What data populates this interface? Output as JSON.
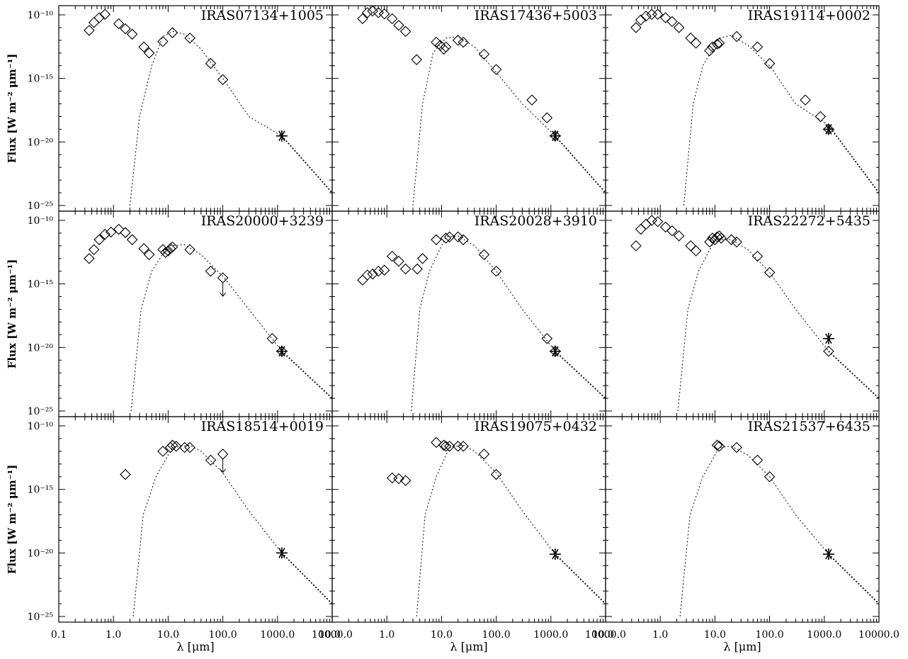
{
  "chart_data": {
    "type": "scatter",
    "figure": {
      "ylabel": "Flux [W m⁻² μm⁻¹]",
      "xlabel": "λ [μm]",
      "x_scale": "log",
      "y_scale": "log",
      "xlim": [
        0.1,
        10000
      ],
      "ylim": [
        1e-25,
        1e-10
      ],
      "x_tick_labels": [
        "0.1",
        "1.0",
        "10.0",
        "100.0",
        "1000.0",
        "10000.0"
      ],
      "y_tick_labels": [
        "10⁻¹⁰",
        "10⁻¹⁵",
        "10⁻²⁰",
        "10⁻²⁵"
      ],
      "series_note": "diamonds: photometry; asterisk: 1.2 mm flux; dotted line: model fit; arrows: upper limits"
    },
    "panels": [
      {
        "name": "IRAS07134+1005",
        "points": [
          [
            0.36,
            6e-12
          ],
          [
            0.44,
            2.5e-11
          ],
          [
            0.55,
            6e-11
          ],
          [
            0.7,
            1.1e-10
          ],
          [
            1.25,
            2e-11
          ],
          [
            1.65,
            8e-12
          ],
          [
            2.2,
            3e-12
          ],
          [
            3.6,
            3e-13
          ],
          [
            4.5,
            1e-13
          ],
          [
            8,
            8e-13
          ],
          [
            12,
            4e-12
          ],
          [
            25,
            1.5e-12
          ],
          [
            60,
            1.5e-14
          ],
          [
            100,
            8e-16
          ]
        ],
        "mm": [
          1200,
          3e-20
        ],
        "model": [
          [
            2.0,
            1e-25
          ],
          [
            3.0,
            1e-18
          ],
          [
            5,
            1e-14
          ],
          [
            8,
            2e-12
          ],
          [
            12,
            5e-12
          ],
          [
            20,
            3e-12
          ],
          [
            40,
            2e-13
          ],
          [
            100,
            1e-15
          ],
          [
            300,
            1e-18
          ],
          [
            1200,
            3e-20
          ],
          [
            10000,
            1e-24
          ]
        ],
        "upper_limits": []
      },
      {
        "name": "IRAS17436+5003",
        "points": [
          [
            0.36,
            5e-11
          ],
          [
            0.44,
            1.5e-10
          ],
          [
            0.55,
            2e-10
          ],
          [
            0.7,
            1.5e-10
          ],
          [
            0.9,
            1.2e-10
          ],
          [
            1.25,
            5e-11
          ],
          [
            1.65,
            1.5e-11
          ],
          [
            2.2,
            5e-12
          ],
          [
            3.5,
            3e-14
          ],
          [
            8,
            7e-13
          ],
          [
            9.5,
            4e-13
          ],
          [
            11,
            2e-13
          ],
          [
            12,
            3e-13
          ],
          [
            20,
            1e-12
          ],
          [
            25,
            7e-13
          ],
          [
            60,
            8e-14
          ],
          [
            100,
            5e-15
          ],
          [
            450,
            2e-17
          ],
          [
            850,
            8e-19
          ],
          [
            1200,
            3e-20
          ]
        ],
        "mm": [
          1200,
          3e-20
        ],
        "model": [
          [
            3.0,
            1e-25
          ],
          [
            4.5,
            1e-17
          ],
          [
            7,
            1e-13
          ],
          [
            12,
            1.5e-12
          ],
          [
            20,
            2e-12
          ],
          [
            40,
            3e-13
          ],
          [
            100,
            3e-15
          ],
          [
            300,
            1e-17
          ],
          [
            1200,
            3e-20
          ],
          [
            10000,
            1e-24
          ]
        ],
        "upper_limits": []
      },
      {
        "name": "IRAS19114+0002",
        "points": [
          [
            0.36,
            1e-11
          ],
          [
            0.44,
            4e-11
          ],
          [
            0.55,
            8e-11
          ],
          [
            0.7,
            1.1e-10
          ],
          [
            0.9,
            1.1e-10
          ],
          [
            1.25,
            6e-11
          ],
          [
            1.65,
            3e-11
          ],
          [
            2.2,
            1e-11
          ],
          [
            3.6,
            1.5e-12
          ],
          [
            4.5,
            6e-13
          ],
          [
            8,
            1.5e-13
          ],
          [
            9,
            3e-13
          ],
          [
            11,
            5e-13
          ],
          [
            12,
            6e-13
          ],
          [
            25,
            2e-12
          ],
          [
            60,
            3e-13
          ],
          [
            100,
            1.5e-14
          ],
          [
            450,
            2e-17
          ],
          [
            850,
            1e-18
          ],
          [
            1200,
            1e-19
          ]
        ],
        "mm": [
          1200,
          1e-19
        ],
        "model": [
          [
            2.7,
            1e-25
          ],
          [
            4,
            1e-17
          ],
          [
            6,
            1e-14
          ],
          [
            12,
            1.5e-12
          ],
          [
            20,
            2.5e-12
          ],
          [
            40,
            4e-13
          ],
          [
            100,
            1e-14
          ],
          [
            300,
            1e-17
          ],
          [
            1200,
            2e-19
          ],
          [
            10000,
            1e-24
          ]
        ],
        "upper_limits": []
      },
      {
        "name": "IRAS20000+3239",
        "points": [
          [
            0.36,
            1e-13
          ],
          [
            0.44,
            5e-13
          ],
          [
            0.55,
            3e-12
          ],
          [
            0.7,
            8e-12
          ],
          [
            0.9,
            1.2e-11
          ],
          [
            1.25,
            2e-11
          ],
          [
            1.65,
            1.1e-11
          ],
          [
            2.2,
            3e-12
          ],
          [
            3.6,
            6e-13
          ],
          [
            4.5,
            2e-13
          ],
          [
            8,
            5e-13
          ],
          [
            9,
            3e-13
          ],
          [
            10,
            4e-13
          ],
          [
            11,
            6e-13
          ],
          [
            12,
            8e-13
          ],
          [
            25,
            5e-13
          ],
          [
            60,
            1e-14
          ],
          [
            100,
            3e-15
          ],
          [
            800,
            5e-20
          ],
          [
            1200,
            5e-21
          ]
        ],
        "mm": [
          1200,
          5e-21
        ],
        "model": [
          [
            2.1,
            1e-25
          ],
          [
            3.2,
            1e-17
          ],
          [
            5,
            1e-14
          ],
          [
            10,
            1e-12
          ],
          [
            20,
            1.2e-12
          ],
          [
            40,
            2e-13
          ],
          [
            100,
            4e-15
          ],
          [
            300,
            1e-17
          ],
          [
            1200,
            5e-21
          ],
          [
            10000,
            1e-24
          ]
        ],
        "upper_limits": [
          [
            100,
            3e-15
          ]
        ]
      },
      {
        "name": "IRAS20028+3910",
        "points": [
          [
            0.36,
            2e-15
          ],
          [
            0.44,
            5e-15
          ],
          [
            0.55,
            6e-15
          ],
          [
            0.7,
            1e-14
          ],
          [
            0.9,
            1.2e-14
          ],
          [
            1.25,
            1.5e-13
          ],
          [
            1.65,
            6e-14
          ],
          [
            2.2,
            1.5e-14
          ],
          [
            3.6,
            1.5e-14
          ],
          [
            4.5,
            1e-13
          ],
          [
            8,
            3e-12
          ],
          [
            12,
            4e-12
          ],
          [
            14,
            5e-12
          ],
          [
            20,
            5e-12
          ],
          [
            25,
            3e-12
          ],
          [
            60,
            2e-13
          ],
          [
            100,
            1e-14
          ],
          [
            850,
            5e-20
          ],
          [
            1200,
            5e-21
          ]
        ],
        "mm": [
          1200,
          5e-21
        ],
        "model": [
          [
            2.8,
            1e-25
          ],
          [
            4,
            1e-17
          ],
          [
            6,
            1e-14
          ],
          [
            12,
            5e-12
          ],
          [
            20,
            6e-12
          ],
          [
            40,
            1e-12
          ],
          [
            100,
            1e-14
          ],
          [
            300,
            1e-17
          ],
          [
            1200,
            5e-21
          ],
          [
            10000,
            1e-24
          ]
        ],
        "upper_limits": []
      },
      {
        "name": "IRAS22272+5435",
        "points": [
          [
            0.36,
            1e-12
          ],
          [
            0.44,
            2e-11
          ],
          [
            0.55,
            5e-11
          ],
          [
            0.7,
            1e-10
          ],
          [
            0.9,
            8e-11
          ],
          [
            1.25,
            3e-11
          ],
          [
            1.65,
            1.5e-11
          ],
          [
            2.2,
            6e-12
          ],
          [
            3.6,
            1e-12
          ],
          [
            4.5,
            4e-13
          ],
          [
            8,
            2e-12
          ],
          [
            9,
            4e-12
          ],
          [
            10,
            3e-12
          ],
          [
            11,
            5e-12
          ],
          [
            12,
            6e-12
          ],
          [
            13,
            4e-12
          ],
          [
            20,
            3e-12
          ],
          [
            25,
            2e-12
          ],
          [
            60,
            1.5e-13
          ],
          [
            100,
            8e-15
          ],
          [
            1200,
            5e-21
          ]
        ],
        "mm": [
          1200,
          5e-20
        ],
        "model": [
          [
            2.1,
            1e-25
          ],
          [
            3.2,
            1e-17
          ],
          [
            5,
            1e-14
          ],
          [
            10,
            3e-12
          ],
          [
            20,
            3e-12
          ],
          [
            40,
            5e-13
          ],
          [
            100,
            8e-15
          ],
          [
            300,
            1e-17
          ],
          [
            1200,
            5e-21
          ],
          [
            10000,
            1e-24
          ]
        ],
        "upper_limits": []
      },
      {
        "name": "IRAS18514+0019",
        "points": [
          [
            1.65,
            1.5e-14
          ],
          [
            8,
            1e-12
          ],
          [
            11,
            2e-12
          ],
          [
            12,
            3e-12
          ],
          [
            14,
            2.5e-12
          ],
          [
            20,
            2e-12
          ],
          [
            25,
            2e-12
          ],
          [
            60,
            2e-13
          ],
          [
            100,
            6e-13
          ]
        ],
        "mm": [
          1200,
          1e-20
        ],
        "model": [
          [
            2.3,
            1e-25
          ],
          [
            3.5,
            1e-17
          ],
          [
            6,
            1e-14
          ],
          [
            12,
            2e-12
          ],
          [
            25,
            3e-12
          ],
          [
            40,
            1e-12
          ],
          [
            100,
            2e-14
          ],
          [
            300,
            2e-17
          ],
          [
            1200,
            1e-20
          ],
          [
            10000,
            1e-24
          ]
        ],
        "upper_limits": [
          [
            100,
            6e-13
          ]
        ]
      },
      {
        "name": "IRAS19075+0432",
        "points": [
          [
            1.25,
            8e-15
          ],
          [
            1.65,
            7e-15
          ],
          [
            2.2,
            5e-15
          ],
          [
            8,
            5e-12
          ],
          [
            11,
            3e-12
          ],
          [
            12,
            2.5e-12
          ],
          [
            14,
            2.5e-12
          ],
          [
            20,
            2.5e-12
          ],
          [
            25,
            2.5e-12
          ],
          [
            60,
            6e-13
          ],
          [
            100,
            1.5e-14
          ]
        ],
        "mm": [
          1200,
          8e-21
        ],
        "model": [
          [
            3.5,
            1e-25
          ],
          [
            5,
            1e-17
          ],
          [
            8,
            1e-14
          ],
          [
            14,
            2e-12
          ],
          [
            25,
            3e-12
          ],
          [
            40,
            1e-12
          ],
          [
            100,
            2e-14
          ],
          [
            300,
            2e-17
          ],
          [
            1200,
            8e-21
          ],
          [
            10000,
            1e-24
          ]
        ],
        "upper_limits": []
      },
      {
        "name": "IRAS21537+6435",
        "points": [
          [
            11,
            3e-12
          ],
          [
            12,
            2.5e-12
          ],
          [
            25,
            2e-12
          ],
          [
            60,
            2e-13
          ],
          [
            100,
            1e-14
          ]
        ],
        "mm": [
          1200,
          8e-21
        ],
        "model": [
          [
            2.3,
            1e-25
          ],
          [
            3.5,
            1e-17
          ],
          [
            6,
            1e-14
          ],
          [
            12,
            2e-12
          ],
          [
            20,
            2.5e-12
          ],
          [
            40,
            5e-13
          ],
          [
            100,
            1e-14
          ],
          [
            300,
            1e-17
          ],
          [
            1200,
            8e-21
          ],
          [
            10000,
            1e-24
          ]
        ],
        "upper_limits": []
      }
    ]
  }
}
